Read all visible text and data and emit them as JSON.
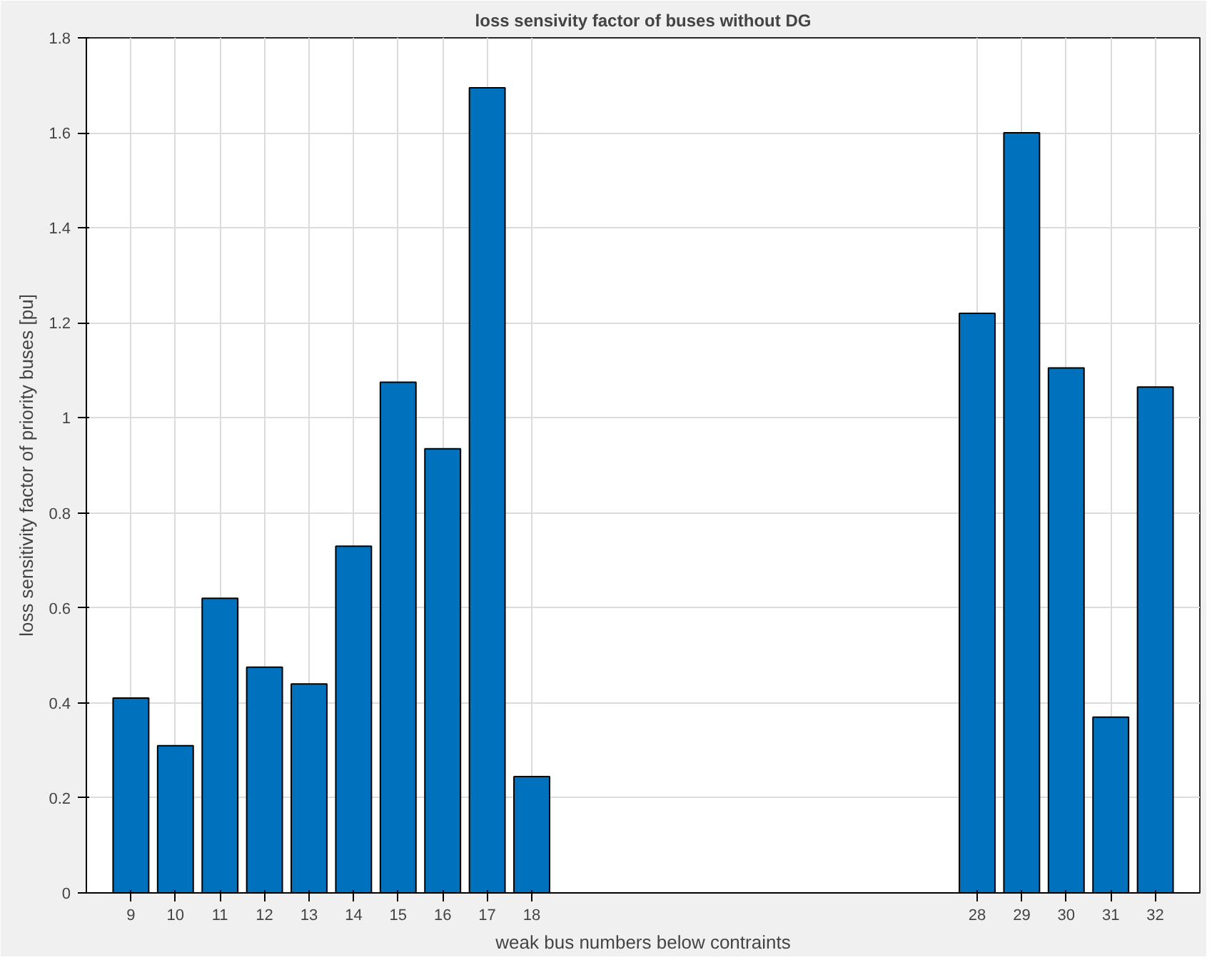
{
  "chart_data": {
    "type": "bar",
    "title": "loss sensivity factor of buses without DG",
    "xlabel": "weak bus numbers below contraints",
    "ylabel": "loss sensitivity factor of priority buses [pu]",
    "x": [
      9,
      10,
      11,
      12,
      13,
      14,
      15,
      16,
      17,
      18,
      28,
      29,
      30,
      31,
      32
    ],
    "values": [
      0.41,
      0.31,
      0.62,
      0.475,
      0.44,
      0.73,
      1.075,
      0.935,
      1.695,
      0.245,
      1.22,
      1.6,
      1.105,
      0.37,
      1.065
    ],
    "color": "#0072bd",
    "xlim": [
      8,
      33
    ],
    "xticks": [
      9,
      10,
      11,
      12,
      13,
      14,
      15,
      16,
      17,
      18,
      28,
      29,
      30,
      31,
      32
    ],
    "ylim": [
      0,
      1.8
    ],
    "yticks": [
      0,
      0.2,
      0.4,
      0.6,
      0.8,
      1,
      1.2,
      1.4,
      1.6,
      1.8
    ],
    "grid": true
  }
}
